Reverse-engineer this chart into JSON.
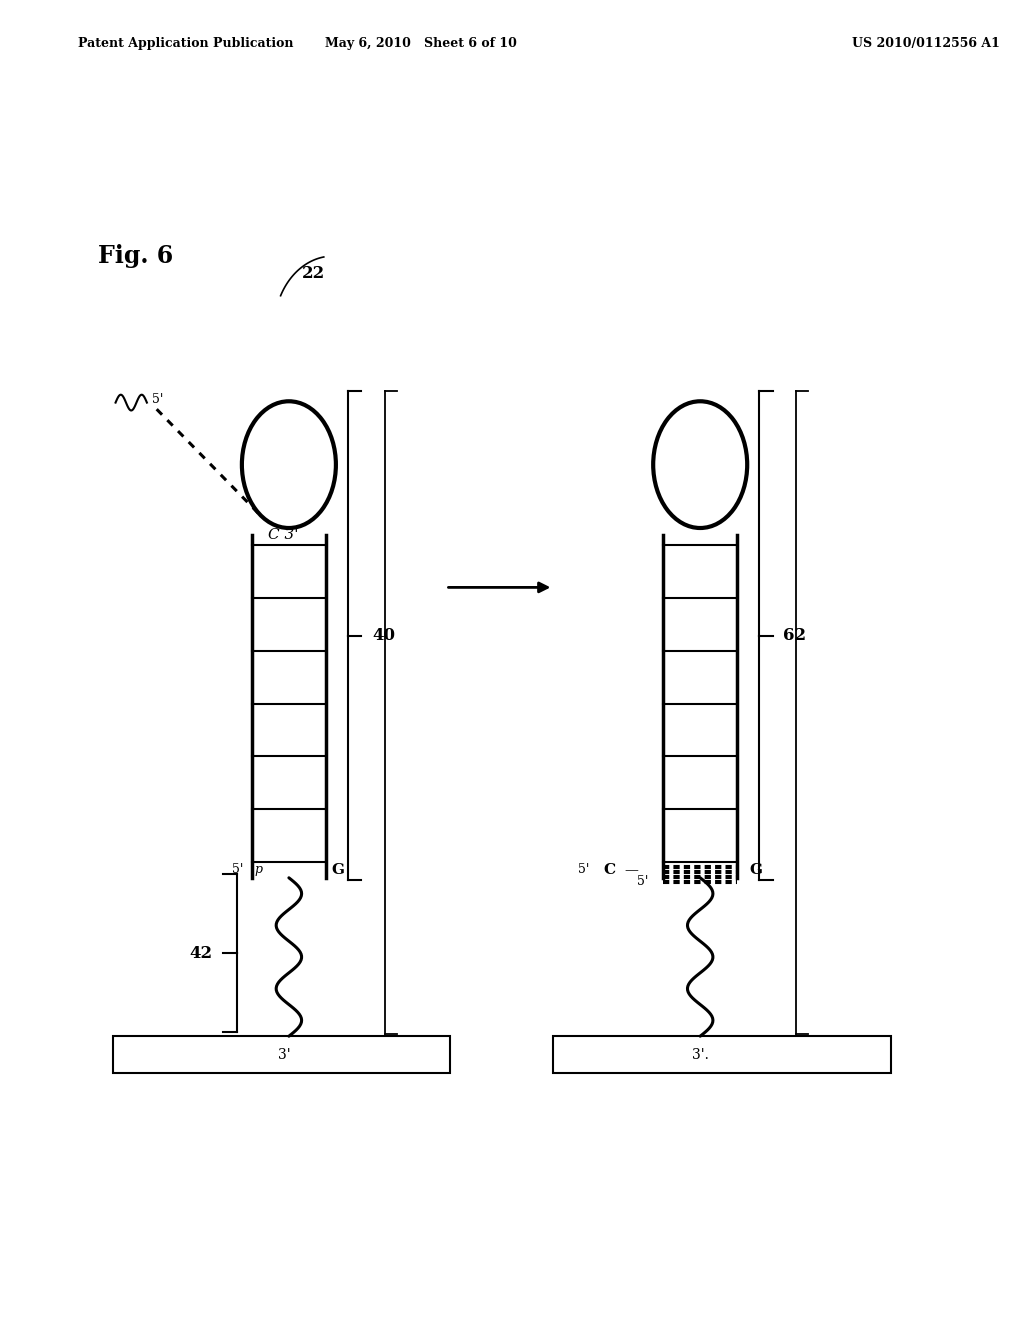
{
  "bg_color": "#ffffff",
  "header_left": "Patent Application Publication",
  "header_mid": "May 6, 2010   Sheet 6 of 10",
  "header_right": "US 2010/0112556 A1",
  "fig_label": "Fig. 6"
}
